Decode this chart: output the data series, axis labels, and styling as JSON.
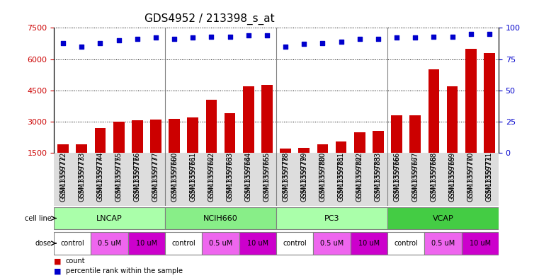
{
  "title": "GDS4952 / 213398_s_at",
  "samples": [
    "GSM1359772",
    "GSM1359773",
    "GSM1359774",
    "GSM1359775",
    "GSM1359776",
    "GSM1359777",
    "GSM1359760",
    "GSM1359761",
    "GSM1359762",
    "GSM1359763",
    "GSM1359764",
    "GSM1359765",
    "GSM1359778",
    "GSM1359779",
    "GSM1359780",
    "GSM1359781",
    "GSM1359782",
    "GSM1359783",
    "GSM1359766",
    "GSM1359767",
    "GSM1359768",
    "GSM1359769",
    "GSM1359770",
    "GSM1359771"
  ],
  "counts": [
    1900,
    1900,
    2700,
    3000,
    3050,
    3100,
    3150,
    3200,
    4050,
    3400,
    4700,
    4750,
    1700,
    1750,
    1900,
    2050,
    2500,
    2550,
    3300,
    3300,
    5500,
    4700,
    6500,
    6300
  ],
  "percentiles": [
    88,
    85,
    88,
    90,
    91,
    92,
    91,
    92,
    93,
    93,
    94,
    94,
    85,
    87,
    88,
    89,
    91,
    91,
    92,
    92,
    93,
    93,
    95,
    95
  ],
  "cell_lines": [
    {
      "name": "LNCAP",
      "start": 0,
      "end": 6
    },
    {
      "name": "NCIH660",
      "start": 6,
      "end": 12
    },
    {
      "name": "PC3",
      "start": 12,
      "end": 18
    },
    {
      "name": "VCAP",
      "start": 18,
      "end": 24
    }
  ],
  "cell_line_colors": [
    "#aaffaa",
    "#88ee88",
    "#aaffaa",
    "#44cc44"
  ],
  "doses": [
    {
      "label": "control",
      "start": 0,
      "end": 2
    },
    {
      "label": "0.5 uM",
      "start": 2,
      "end": 4
    },
    {
      "label": "10 uM",
      "start": 4,
      "end": 6
    },
    {
      "label": "control",
      "start": 6,
      "end": 8
    },
    {
      "label": "0.5 uM",
      "start": 8,
      "end": 10
    },
    {
      "label": "10 uM",
      "start": 10,
      "end": 12
    },
    {
      "label": "control",
      "start": 12,
      "end": 14
    },
    {
      "label": "0.5 uM",
      "start": 14,
      "end": 16
    },
    {
      "label": "10 uM",
      "start": 16,
      "end": 18
    },
    {
      "label": "control",
      "start": 18,
      "end": 20
    },
    {
      "label": "0.5 uM",
      "start": 20,
      "end": 22
    },
    {
      "label": "10 uM",
      "start": 22,
      "end": 24
    }
  ],
  "dose_colors": {
    "control": "#ffffff",
    "0.5 uM": "#ee66ee",
    "10 uM": "#cc00cc"
  },
  "ylim_left": [
    1500,
    7500
  ],
  "ylim_right": [
    0,
    100
  ],
  "yticks_left": [
    1500,
    3000,
    4500,
    6000,
    7500
  ],
  "yticks_right": [
    0,
    25,
    50,
    75,
    100
  ],
  "bar_color": "#cc0000",
  "dot_color": "#0000cc",
  "bar_width": 0.6,
  "group_separators": [
    5.5,
    11.5,
    17.5
  ],
  "title_fontsize": 11,
  "tick_fontsize": 7
}
